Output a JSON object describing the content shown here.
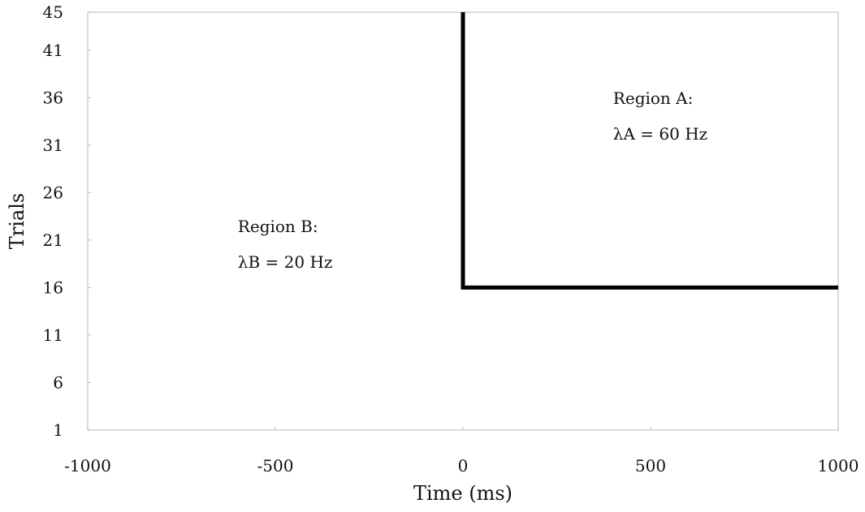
{
  "chart_data": {
    "type": "line",
    "title": "",
    "xlabel": "Time (ms)",
    "ylabel": "Trials",
    "xlim": [
      -1000,
      1000
    ],
    "ylim": [
      1,
      45
    ],
    "x_ticks": [
      -1000,
      -500,
      0,
      500,
      1000
    ],
    "y_ticks": [
      1,
      6,
      11,
      16,
      21,
      26,
      31,
      36,
      41,
      45
    ],
    "grid": false,
    "boundary": {
      "x": [
        0,
        0,
        1000
      ],
      "y": [
        45,
        16,
        16
      ],
      "color": "#000000"
    },
    "annotations": [
      {
        "name": "Region A",
        "line1": "Region A:",
        "line2": "λA = 60 Hz",
        "x": 400,
        "y": 34.5
      },
      {
        "name": "Region B",
        "line1": "Region B:",
        "line2": "λB = 20 Hz",
        "x": -600,
        "y": 21
      }
    ]
  }
}
